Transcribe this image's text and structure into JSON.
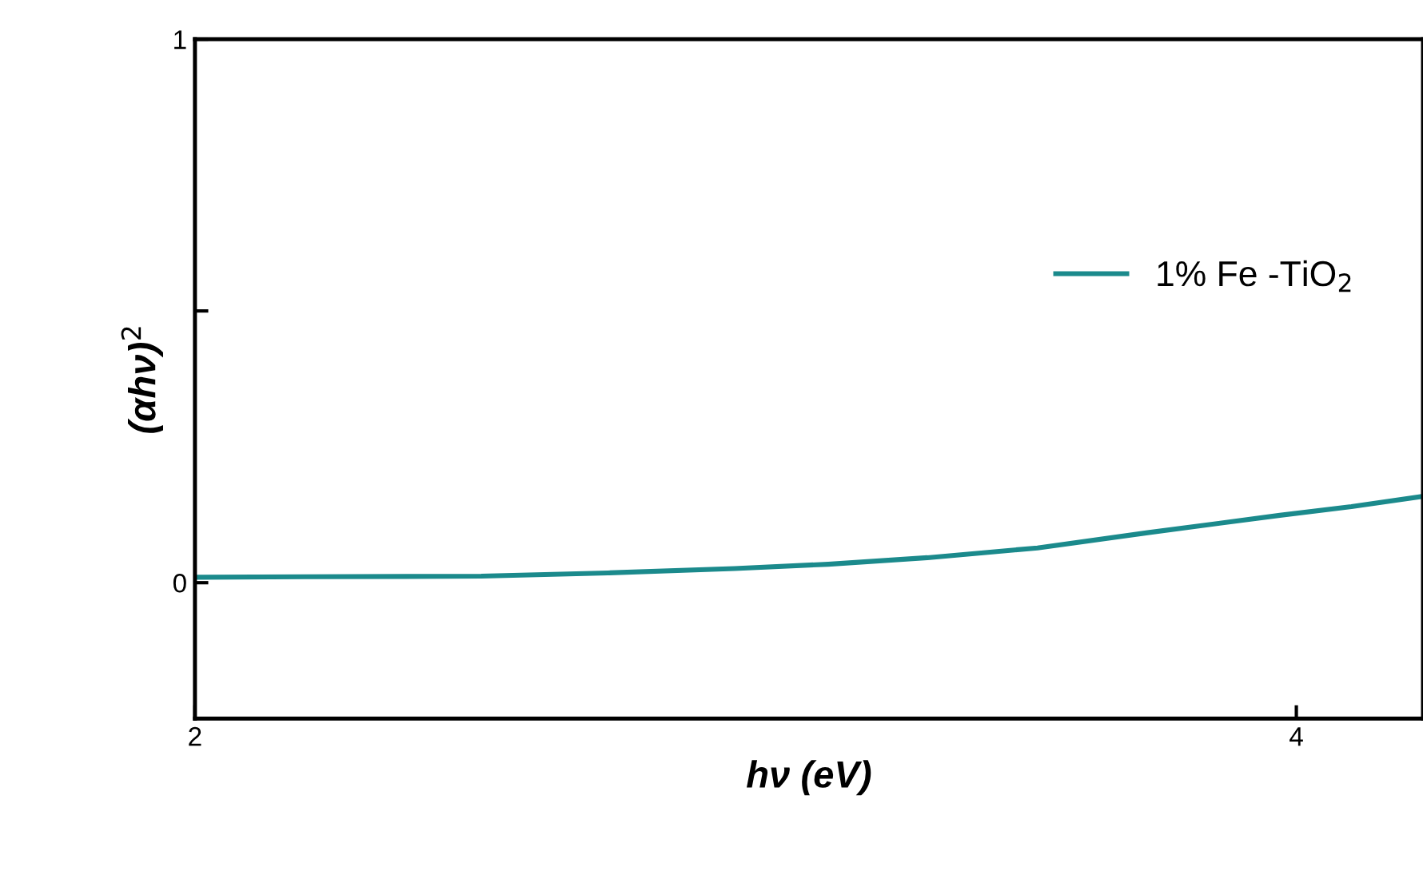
{
  "chart_data": {
    "type": "line",
    "xlabel": "hν (eV)",
    "ylabel": "(αhν)$^{2}$",
    "x": [
      2.0,
      2.2,
      2.52,
      2.75,
      2.98,
      3.15,
      3.33,
      3.53,
      3.73,
      3.97,
      4.1,
      4.23
    ],
    "series": [
      {
        "name": "1% Fe -TiO$_{2}$",
        "color": "#1b8a8c",
        "values": [
          0.01,
          0.011,
          0.012,
          0.018,
          0.026,
          0.034,
          0.046,
          0.064,
          0.092,
          0.124,
          0.14,
          0.159
        ]
      }
    ],
    "xlim": [
      2,
      4.23
    ],
    "xticks": [
      2,
      4
    ],
    "ylim": [
      -0.25,
      1
    ],
    "yticks": [
      0,
      {
        "value": 0.5,
        "label": null
      },
      1
    ],
    "legend": "top right",
    "grid": false,
    "marker": "none",
    "line_style": "solid"
  }
}
